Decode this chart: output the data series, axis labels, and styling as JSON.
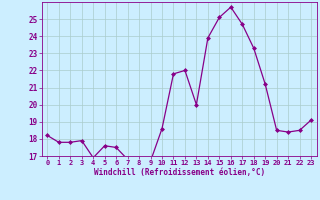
{
  "x": [
    0,
    1,
    2,
    3,
    4,
    5,
    6,
    7,
    8,
    9,
    10,
    11,
    12,
    13,
    14,
    15,
    16,
    17,
    18,
    19,
    20,
    21,
    22,
    23
  ],
  "y": [
    18.2,
    17.8,
    17.8,
    17.9,
    16.9,
    17.6,
    17.5,
    16.8,
    16.8,
    16.7,
    18.6,
    21.8,
    22.0,
    20.0,
    23.9,
    25.1,
    25.7,
    24.7,
    23.3,
    21.2,
    18.5,
    18.4,
    18.5,
    19.1
  ],
  "xlabel": "Windchill (Refroidissement éolien,°C)",
  "ylim": [
    17,
    26
  ],
  "xlim": [
    -0.5,
    23.5
  ],
  "yticks": [
    17,
    18,
    19,
    20,
    21,
    22,
    23,
    24,
    25
  ],
  "xtick_labels": [
    "0",
    "1",
    "2",
    "3",
    "4",
    "5",
    "6",
    "7",
    "8",
    "9",
    "10",
    "11",
    "12",
    "13",
    "14",
    "15",
    "16",
    "17",
    "18",
    "19",
    "20",
    "21",
    "22",
    "23"
  ],
  "xticks": [
    0,
    1,
    2,
    3,
    4,
    5,
    6,
    7,
    8,
    9,
    10,
    11,
    12,
    13,
    14,
    15,
    16,
    17,
    18,
    19,
    20,
    21,
    22,
    23
  ],
  "line_color": "#880088",
  "marker_color": "#880088",
  "bg_color": "#cceeff",
  "grid_color": "#aacccc",
  "tick_label_color": "#880088",
  "xlabel_color": "#880088"
}
